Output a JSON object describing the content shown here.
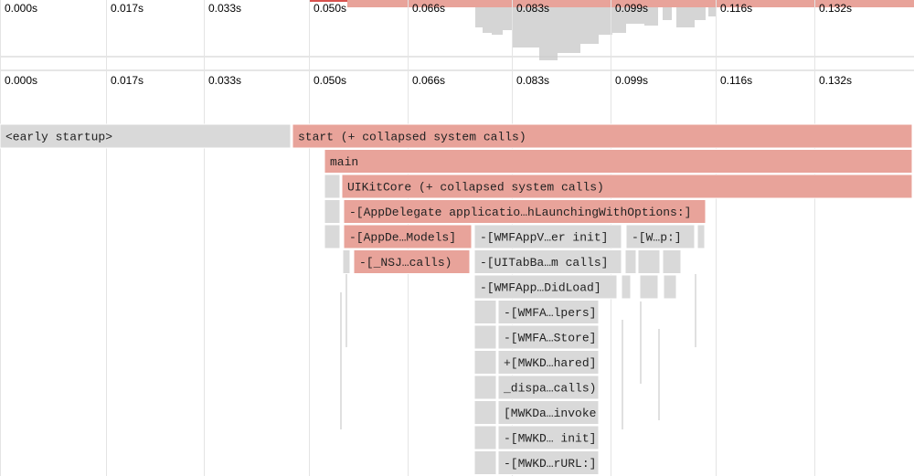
{
  "minimap": {
    "ticks": [
      "0.000s",
      "0.017s",
      "0.033s",
      "0.050s",
      "0.066s",
      "0.083s",
      "0.099s",
      "0.116s",
      "0.132s"
    ]
  },
  "timeline": {
    "ticks": [
      "0.000s",
      "0.017s",
      "0.033s",
      "0.050s",
      "0.066s",
      "0.083s",
      "0.099s",
      "0.116s",
      "0.132s"
    ]
  },
  "frames": [
    {
      "label": "<early startup>"
    },
    {
      "label": "start (+ collapsed system calls)"
    },
    {
      "label": "main"
    },
    {
      "label": "UIKitCore (+ collapsed system calls)"
    },
    {
      "label": "-[AppDelegate applicatio…hLaunchingWithOptions:]"
    },
    {
      "label": "-[AppDe…Models]"
    },
    {
      "label": "-[WMFAppV…er init]"
    },
    {
      "label": "-[W…p:]"
    },
    {
      "label": "-[_NSJ…calls)"
    },
    {
      "label": "-[UITabBa…m calls]"
    },
    {
      "label": "-[WMFApp…DidLoad]"
    },
    {
      "label": "-[WMFA…lpers]"
    },
    {
      "label": "-[WMFA…Store]"
    },
    {
      "label": "+[MWKD…hared]"
    },
    {
      "label": "_dispa…calls)"
    },
    {
      "label": "[MWKDa…invoke"
    },
    {
      "label": "-[MWKD… init]"
    },
    {
      "label": "-[MWKD…rURL:]"
    }
  ]
}
